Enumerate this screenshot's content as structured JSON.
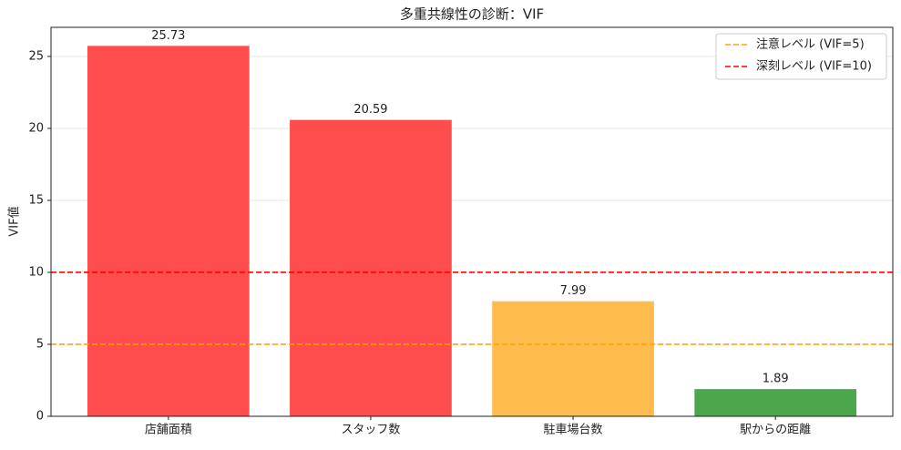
{
  "chart_data": {
    "type": "bar",
    "title": "多重共線性の診断：VIF",
    "ylabel": "VIF値",
    "categories": [
      "店舗面積",
      "スタッフ数",
      "駐車場台数",
      "駅からの距離"
    ],
    "values": [
      25.73,
      20.59,
      7.99,
      1.89
    ],
    "colors": [
      "#ff4c4c",
      "#ff4c4c",
      "#ffbb4c",
      "#4ca64c"
    ],
    "ylim": [
      0,
      27.02
    ],
    "yticks": [
      0,
      5,
      10,
      15,
      20,
      25
    ],
    "grid": true,
    "hlines": [
      {
        "value": 5,
        "label": "注意レベル (VIF=5)",
        "color": "orange"
      },
      {
        "value": 10,
        "label": "深刻レベル (VIF=10)",
        "color": "red"
      }
    ],
    "legend": "upper right"
  }
}
